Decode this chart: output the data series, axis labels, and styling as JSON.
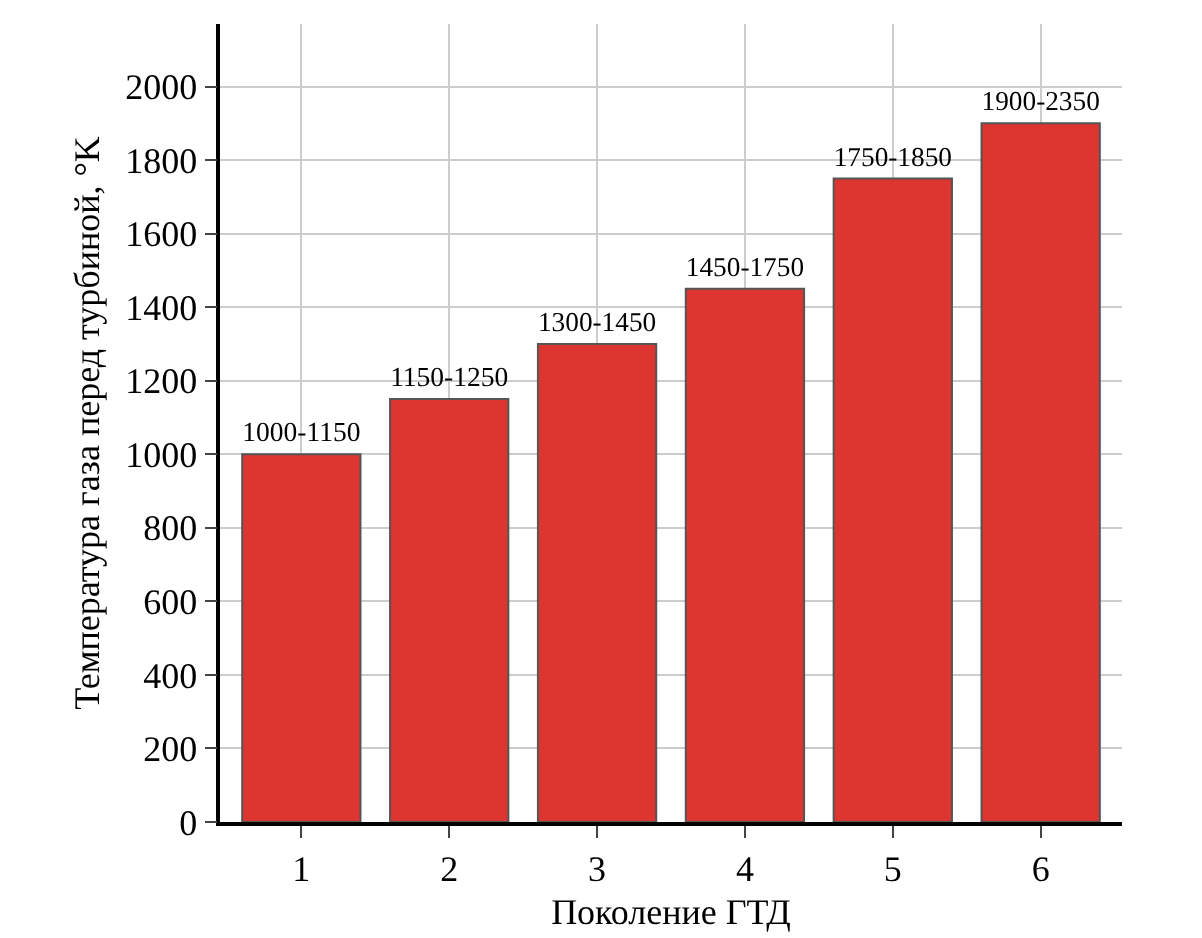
{
  "chart_data": {
    "type": "bar",
    "xlabel": "Поколение ГТД",
    "ylabel": "Температура газа перед турбиной, °K",
    "categories": [
      "1",
      "2",
      "3",
      "4",
      "5",
      "6"
    ],
    "values": [
      1000,
      1150,
      1300,
      1450,
      1750,
      1900
    ],
    "value_labels": [
      "1000-1150",
      "1150-1250",
      "1300-1450",
      "1450-1750",
      "1750-1850",
      "1900-2350"
    ],
    "color": "#dd3530",
    "ylim": [
      0,
      2170
    ],
    "yticks": [
      0,
      200,
      400,
      600,
      800,
      1000,
      1200,
      1400,
      1600,
      1800,
      2000
    ],
    "grid": true
  }
}
